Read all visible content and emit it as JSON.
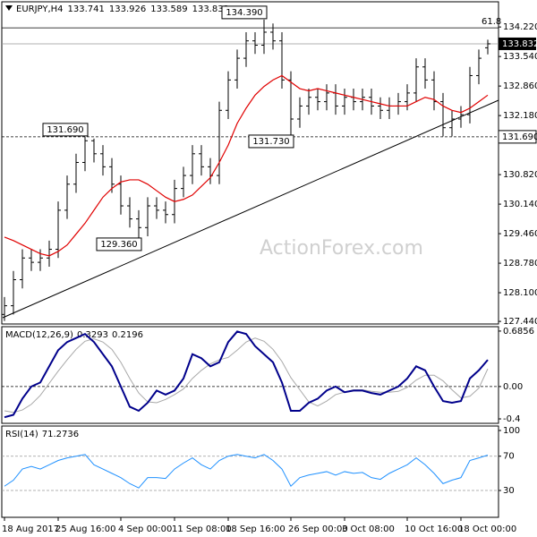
{
  "chart_data": {
    "type": "ohlc",
    "symbol": "EURJPY,H4",
    "watermark": "ActionForex.com",
    "categories": [
      "18 Aug 2017",
      null,
      null,
      null,
      null,
      null,
      "25 Aug 16:00",
      null,
      null,
      null,
      null,
      null,
      null,
      "4 Sep 00:00",
      null,
      null,
      null,
      null,
      null,
      "11 Sep 08:00",
      null,
      null,
      null,
      null,
      null,
      "18 Sep 16:00",
      null,
      null,
      null,
      null,
      null,
      null,
      "26 Sep 00:00",
      null,
      null,
      null,
      null,
      null,
      "3 Oct 08:00",
      null,
      null,
      null,
      null,
      null,
      null,
      "10 Oct 16:00",
      null,
      null,
      null,
      null,
      null,
      "18 Oct 00:00",
      null,
      null,
      null
    ],
    "open": [
      127.6,
      127.8,
      128.4,
      128.9,
      128.8,
      128.9,
      129.1,
      130.0,
      130.6,
      131.1,
      131.6,
      131.3,
      131.0,
      130.6,
      130.1,
      129.8,
      129.6,
      130.1,
      130.0,
      129.9,
      130.5,
      130.8,
      131.3,
      131.0,
      130.8,
      132.3,
      133.0,
      133.5,
      133.9,
      133.8,
      134.1,
      133.9,
      133.0,
      132.1,
      132.4,
      132.6,
      132.5,
      132.7,
      132.4,
      132.6,
      132.5,
      132.6,
      132.4,
      132.3,
      132.4,
      132.5,
      132.7,
      133.3,
      133.0,
      132.5,
      131.9,
      132.1,
      132.2,
      133.1,
      133.741
    ],
    "high": [
      128.0,
      128.6,
      129.1,
      129.1,
      129.1,
      129.3,
      130.2,
      130.8,
      131.3,
      131.69,
      131.65,
      131.5,
      131.2,
      130.8,
      130.3,
      130.0,
      130.3,
      130.3,
      130.2,
      130.7,
      131.0,
      131.5,
      131.5,
      131.2,
      132.5,
      133.2,
      133.7,
      134.1,
      134.1,
      134.39,
      134.3,
      134.1,
      133.2,
      132.6,
      132.8,
      132.8,
      132.9,
      132.9,
      132.8,
      132.8,
      132.8,
      132.8,
      132.6,
      132.6,
      132.7,
      132.9,
      133.5,
      133.5,
      133.2,
      132.7,
      132.3,
      132.4,
      133.3,
      133.7,
      133.926
    ],
    "low": [
      127.45,
      127.6,
      128.2,
      128.6,
      128.6,
      128.7,
      128.9,
      129.8,
      130.4,
      130.9,
      131.1,
      130.8,
      130.4,
      129.9,
      129.6,
      129.36,
      129.4,
      129.8,
      129.7,
      129.7,
      130.3,
      130.6,
      130.8,
      130.6,
      130.6,
      132.1,
      132.8,
      133.3,
      133.6,
      133.6,
      133.7,
      132.8,
      131.73,
      131.9,
      132.2,
      132.3,
      132.3,
      132.2,
      132.2,
      132.3,
      132.3,
      132.2,
      132.1,
      132.1,
      132.2,
      132.3,
      132.5,
      132.8,
      132.3,
      131.7,
      131.7,
      131.9,
      132.0,
      132.9,
      133.589
    ],
    "close": [
      127.8,
      128.4,
      128.9,
      128.8,
      128.9,
      129.1,
      130.0,
      130.6,
      131.1,
      131.6,
      131.3,
      131.0,
      130.6,
      130.1,
      129.8,
      129.6,
      130.1,
      130.0,
      129.9,
      130.5,
      130.8,
      131.3,
      131.0,
      130.8,
      132.3,
      133.0,
      133.5,
      133.9,
      133.8,
      134.1,
      133.9,
      133.0,
      132.1,
      132.4,
      132.6,
      132.5,
      132.7,
      132.4,
      132.6,
      132.5,
      132.6,
      132.4,
      132.3,
      132.4,
      132.5,
      132.7,
      133.3,
      133.0,
      132.5,
      131.9,
      132.1,
      132.2,
      133.1,
      133.5,
      133.832
    ],
    "bar_color": "#000000",
    "ma": {
      "color": "#e00000",
      "values": [
        129.38,
        129.3,
        129.2,
        129.1,
        129.0,
        128.95,
        129.05,
        129.2,
        129.45,
        129.7,
        130.0,
        130.3,
        130.5,
        130.65,
        130.7,
        130.7,
        130.6,
        130.45,
        130.3,
        130.2,
        130.25,
        130.35,
        130.55,
        130.75,
        131.1,
        131.5,
        132.0,
        132.35,
        132.65,
        132.85,
        133.0,
        133.1,
        132.95,
        132.8,
        132.75,
        132.8,
        132.75,
        132.7,
        132.65,
        132.6,
        132.55,
        132.5,
        132.45,
        132.4,
        132.4,
        132.4,
        132.5,
        132.6,
        132.55,
        132.4,
        132.3,
        132.25,
        132.35,
        132.5,
        132.65
      ]
    },
    "ylim": [
      127.38,
      134.8
    ],
    "yticks": [
      {
        "value": 134.22,
        "label": "134.220"
      },
      {
        "value": 133.54,
        "label": "133.540"
      },
      {
        "value": 132.86,
        "label": "132.860"
      },
      {
        "value": 132.18,
        "label": "132.180"
      },
      {
        "value": 130.82,
        "label": "130.820"
      },
      {
        "value": 130.14,
        "label": "130.140"
      },
      {
        "value": 129.46,
        "label": "129.460"
      },
      {
        "value": 128.78,
        "label": "128.780"
      },
      {
        "value": 128.1,
        "label": "128.100"
      },
      {
        "value": 127.44,
        "label": "127.440"
      }
    ],
    "annotations": [
      {
        "value": 134.39,
        "label": "134.390"
      },
      {
        "value": 131.69,
        "label": "131.690"
      },
      {
        "value": 131.73,
        "label": "131.730"
      },
      {
        "value": 129.36,
        "label": "129.360"
      }
    ],
    "level_line": {
      "value": 131.69,
      "label": "131.690"
    },
    "fib_level": {
      "ratio": 61.8,
      "price": 134.2
    },
    "macd": {
      "title": "MACD(12,26,9)",
      "ylim": [
        -0.455,
        0.74
      ],
      "yticks": [
        0.6856,
        {
          "value": 0,
          "label": "0.00"
        },
        -0.4
      ],
      "main": {
        "color": "#00008b",
        "values": [
          -0.38,
          -0.35,
          -0.15,
          0.0,
          0.05,
          0.25,
          0.45,
          0.55,
          0.6,
          0.65,
          0.55,
          0.4,
          0.25,
          0.0,
          -0.25,
          -0.3,
          -0.2,
          -0.05,
          -0.1,
          -0.05,
          0.1,
          0.4,
          0.35,
          0.25,
          0.3,
          0.55,
          0.68,
          0.65,
          0.5,
          0.4,
          0.3,
          0.05,
          -0.3,
          -0.3,
          -0.2,
          -0.15,
          -0.05,
          0.0,
          -0.07,
          -0.05,
          -0.05,
          -0.08,
          -0.1,
          -0.05,
          0.0,
          0.1,
          0.25,
          0.2,
          0.0,
          -0.18,
          -0.2,
          -0.18,
          0.1,
          0.2,
          0.3293
        ]
      },
      "signal": {
        "color": "#a8a8a8",
        "values": [
          -0.3,
          -0.32,
          -0.29,
          -0.22,
          -0.11,
          0.04,
          0.19,
          0.33,
          0.46,
          0.56,
          0.59,
          0.55,
          0.46,
          0.3,
          0.1,
          -0.08,
          -0.19,
          -0.2,
          -0.16,
          -0.1,
          -0.03,
          0.1,
          0.2,
          0.28,
          0.33,
          0.36,
          0.45,
          0.55,
          0.6,
          0.56,
          0.46,
          0.31,
          0.11,
          -0.04,
          -0.19,
          -0.24,
          -0.18,
          -0.1,
          -0.07,
          -0.04,
          -0.04,
          -0.06,
          -0.07,
          -0.07,
          -0.06,
          -0.01,
          0.08,
          0.14,
          0.14,
          0.07,
          -0.04,
          -0.14,
          -0.12,
          -0.02,
          0.2196
        ]
      }
    },
    "rsi": {
      "title": "RSI(14)",
      "color": "#1e90ff",
      "ylim": [
        -1.3,
        105.2
      ],
      "yticks": [
        100,
        70,
        30
      ],
      "levels": [
        70,
        30
      ],
      "values": [
        35,
        42,
        55,
        58,
        55,
        60,
        65,
        68,
        70,
        72,
        60,
        55,
        50,
        45,
        38,
        33,
        45,
        45,
        44,
        55,
        62,
        68,
        60,
        55,
        65,
        70,
        72,
        70,
        68,
        72,
        65,
        55,
        35,
        45,
        48,
        50,
        52,
        48,
        52,
        50,
        51,
        45,
        43,
        50,
        55,
        60,
        68,
        60,
        50,
        38,
        42,
        45,
        65,
        68,
        71.2736
      ]
    }
  }
}
